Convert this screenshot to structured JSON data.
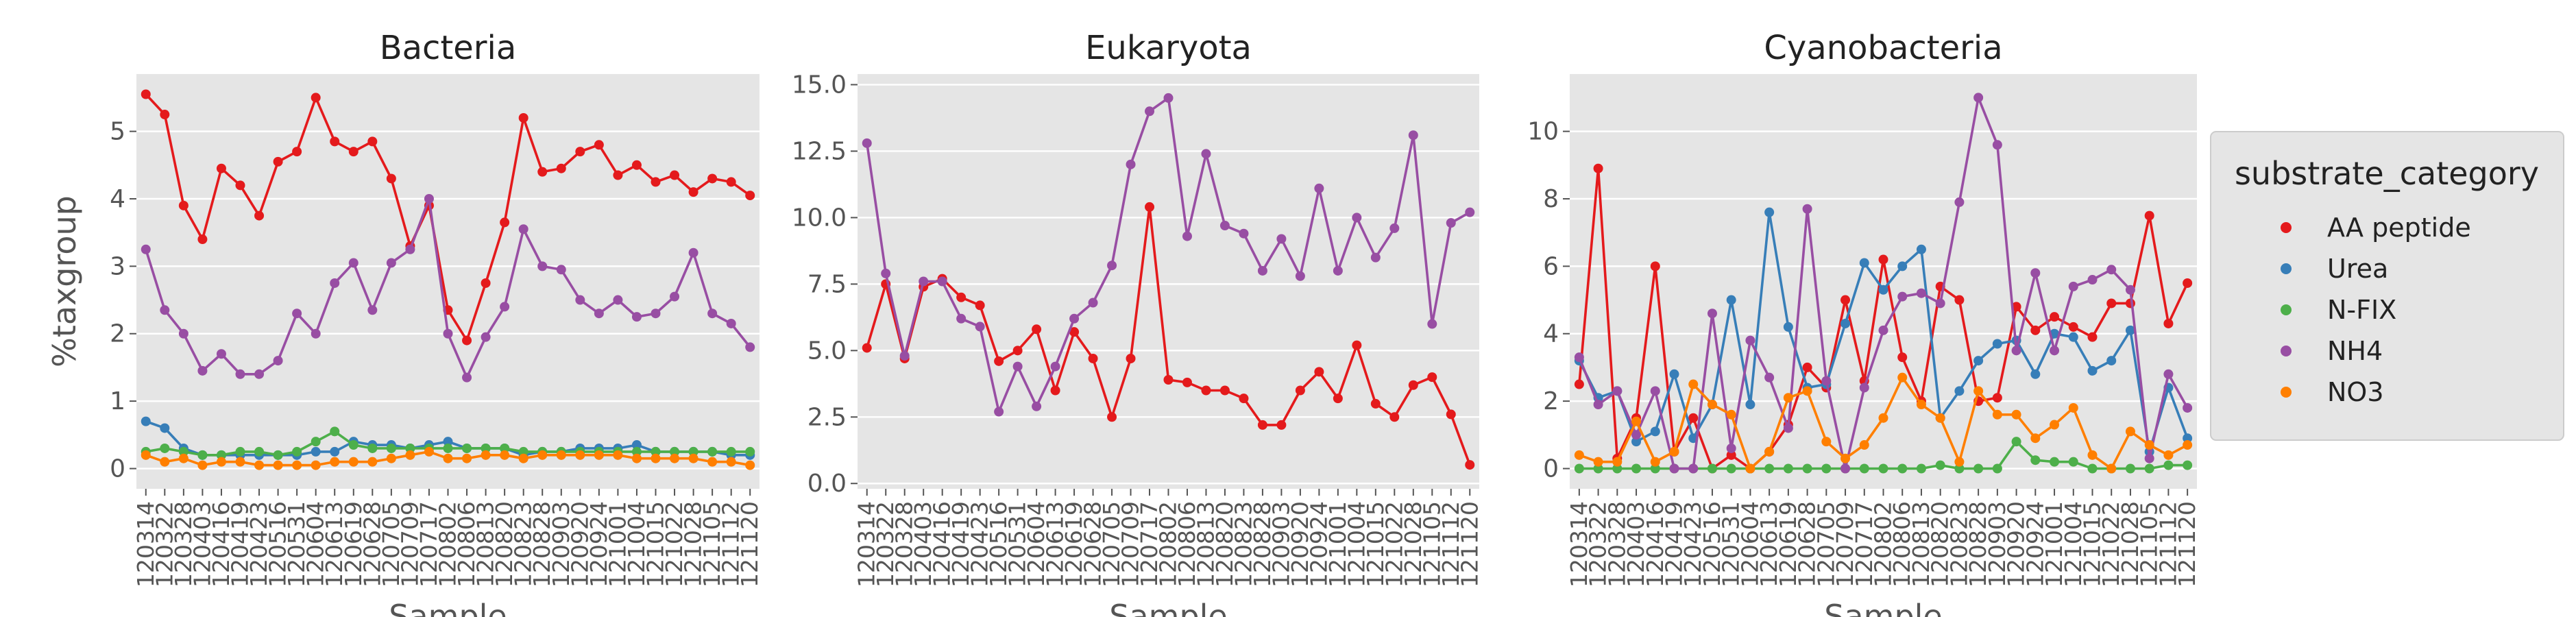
{
  "legend_title": "substrate_category",
  "legend_position": "right",
  "chart_data": [
    {
      "type": "line",
      "title": "Bacteria",
      "ylabel": "%taxgroup",
      "xlabel": "Sample",
      "categories": [
        "120314",
        "120322",
        "120328",
        "120403",
        "120416",
        "120419",
        "120423",
        "120516",
        "120531",
        "120604",
        "120613",
        "120619",
        "120628",
        "120705",
        "120709",
        "120717",
        "120802",
        "120806",
        "120813",
        "120820",
        "120823",
        "120828",
        "120903",
        "120920",
        "120924",
        "121001",
        "121004",
        "121015",
        "121022",
        "121028",
        "121105",
        "121112",
        "121120"
      ],
      "series": [
        {
          "name": "AA peptide",
          "color": "#e41a1c",
          "values": [
            5.55,
            5.25,
            3.9,
            3.4,
            4.45,
            4.2,
            3.75,
            4.55,
            4.7,
            5.5,
            4.85,
            4.7,
            4.85,
            4.3,
            3.3,
            3.9,
            2.35,
            1.9,
            2.75,
            3.65,
            5.2,
            4.4,
            4.45,
            4.7,
            4.8,
            4.35,
            4.5,
            4.25,
            4.35,
            4.1,
            4.3,
            4.25,
            4.05
          ]
        },
        {
          "name": "Urea",
          "color": "#377eb8",
          "values": [
            0.7,
            0.6,
            0.3,
            0.2,
            0.2,
            0.2,
            0.2,
            0.2,
            0.2,
            0.25,
            0.25,
            0.4,
            0.35,
            0.35,
            0.3,
            0.35,
            0.4,
            0.3,
            0.3,
            0.3,
            0.2,
            0.25,
            0.25,
            0.3,
            0.3,
            0.3,
            0.35,
            0.25,
            0.25,
            0.25,
            0.25,
            0.2,
            0.2
          ]
        },
        {
          "name": "N-FIX",
          "color": "#4daf4a",
          "values": [
            0.25,
            0.3,
            0.25,
            0.2,
            0.2,
            0.25,
            0.25,
            0.2,
            0.25,
            0.4,
            0.55,
            0.35,
            0.3,
            0.3,
            0.3,
            0.3,
            0.3,
            0.3,
            0.3,
            0.3,
            0.25,
            0.25,
            0.25,
            0.25,
            0.25,
            0.25,
            0.25,
            0.25,
            0.25,
            0.25,
            0.25,
            0.25,
            0.25
          ]
        },
        {
          "name": "NH4",
          "color": "#984ea3",
          "values": [
            3.25,
            2.35,
            2.0,
            1.45,
            1.7,
            1.4,
            1.4,
            1.6,
            2.3,
            2.0,
            2.75,
            3.05,
            2.35,
            3.05,
            3.25,
            4.0,
            2.0,
            1.35,
            1.95,
            2.4,
            3.55,
            3.0,
            2.95,
            2.5,
            2.3,
            2.5,
            2.25,
            2.3,
            2.55,
            3.2,
            2.3,
            2.15,
            1.8
          ]
        },
        {
          "name": "NO3",
          "color": "#ff7f00",
          "values": [
            0.2,
            0.1,
            0.15,
            0.05,
            0.1,
            0.1,
            0.05,
            0.05,
            0.05,
            0.05,
            0.1,
            0.1,
            0.1,
            0.15,
            0.2,
            0.25,
            0.15,
            0.15,
            0.2,
            0.2,
            0.15,
            0.2,
            0.2,
            0.2,
            0.2,
            0.2,
            0.15,
            0.15,
            0.15,
            0.15,
            0.1,
            0.1,
            0.05
          ]
        }
      ],
      "ylim": [
        -0.3,
        5.85
      ],
      "yticks": [
        0,
        1,
        2,
        3,
        4,
        5
      ],
      "grid": true
    },
    {
      "type": "line",
      "title": "Eukaryota",
      "xlabel": "Sample",
      "categories": [
        "120314",
        "120322",
        "120328",
        "120403",
        "120416",
        "120419",
        "120423",
        "120516",
        "120531",
        "120604",
        "120613",
        "120619",
        "120628",
        "120705",
        "120709",
        "120717",
        "120802",
        "120806",
        "120813",
        "120820",
        "120823",
        "120828",
        "120903",
        "120920",
        "120924",
        "121001",
        "121004",
        "121015",
        "121022",
        "121028",
        "121105",
        "121112",
        "121120"
      ],
      "series": [
        {
          "name": "AA peptide",
          "color": "#e41a1c",
          "values": [
            5.1,
            7.5,
            4.7,
            7.4,
            7.7,
            7.0,
            6.7,
            4.6,
            5.0,
            5.8,
            3.5,
            5.7,
            4.7,
            2.5,
            4.7,
            10.4,
            3.9,
            3.8,
            3.5,
            3.5,
            3.2,
            2.2,
            2.2,
            3.5,
            4.2,
            3.2,
            5.2,
            3.0,
            2.5,
            3.7,
            4.0,
            2.6,
            0.7
          ]
        },
        {
          "name": "NH4",
          "color": "#984ea3",
          "values": [
            12.8,
            7.9,
            4.8,
            7.6,
            7.6,
            6.2,
            5.9,
            2.7,
            4.4,
            2.9,
            4.4,
            6.2,
            6.8,
            8.2,
            12.0,
            14.0,
            14.5,
            9.3,
            12.4,
            9.7,
            9.4,
            8.0,
            9.2,
            7.8,
            11.1,
            8.0,
            10.0,
            8.5,
            9.6,
            13.1,
            6.0,
            9.8,
            10.2
          ]
        }
      ],
      "ylim": [
        -0.2,
        15.4
      ],
      "yticks": [
        {
          "value": 0,
          "label": "0.0"
        },
        {
          "value": 2.5,
          "label": "2.5"
        },
        {
          "value": 5,
          "label": "5.0"
        },
        {
          "value": 7.5,
          "label": "7.5"
        },
        {
          "value": 10,
          "label": "10.0"
        },
        {
          "value": 12.5,
          "label": "12.5"
        },
        {
          "value": 15,
          "label": "15.0"
        }
      ],
      "grid": true
    },
    {
      "type": "line",
      "title": "Cyanobacteria",
      "xlabel": "Sample",
      "categories": [
        "120314",
        "120322",
        "120328",
        "120403",
        "120416",
        "120419",
        "120423",
        "120516",
        "120531",
        "120604",
        "120613",
        "120619",
        "120628",
        "120705",
        "120709",
        "120717",
        "120802",
        "120806",
        "120813",
        "120820",
        "120823",
        "120828",
        "120903",
        "120920",
        "120924",
        "121001",
        "121004",
        "121015",
        "121022",
        "121028",
        "121105",
        "121112",
        "121120"
      ],
      "series": [
        {
          "name": "AA peptide",
          "color": "#e41a1c",
          "values": [
            2.5,
            8.9,
            0.3,
            1.5,
            6.0,
            0.5,
            1.5,
            0.0,
            0.4,
            0.0,
            0.5,
            1.3,
            3.0,
            2.4,
            5.0,
            2.6,
            6.2,
            3.3,
            2.0,
            5.4,
            5.0,
            2.0,
            2.1,
            4.8,
            4.1,
            4.5,
            4.2,
            3.9,
            4.9,
            4.9,
            7.5,
            4.3,
            5.5
          ]
        },
        {
          "name": "Urea",
          "color": "#377eb8",
          "values": [
            3.2,
            2.1,
            2.3,
            0.8,
            1.1,
            2.8,
            0.9,
            1.9,
            5.0,
            1.9,
            7.6,
            4.2,
            2.4,
            2.5,
            4.3,
            6.1,
            5.3,
            6.0,
            6.5,
            1.5,
            2.3,
            3.2,
            3.7,
            3.8,
            2.8,
            4.0,
            3.9,
            2.9,
            3.2,
            4.1,
            0.5,
            2.4,
            0.9
          ]
        },
        {
          "name": "N-FIX",
          "color": "#4daf4a",
          "values": [
            0,
            0,
            0,
            0,
            0,
            0,
            0,
            0,
            0,
            0,
            0,
            0,
            0,
            0,
            0,
            0,
            0,
            0,
            0,
            0.1,
            0,
            0,
            0,
            0.8,
            0.25,
            0.2,
            0.2,
            0,
            0,
            0,
            0,
            0.1,
            0.1
          ]
        },
        {
          "name": "NH4",
          "color": "#984ea3",
          "values": [
            3.3,
            1.9,
            2.3,
            1.0,
            2.3,
            0,
            0,
            4.6,
            0.6,
            3.8,
            2.7,
            1.2,
            7.7,
            2.6,
            0,
            2.4,
            4.1,
            5.1,
            5.2,
            4.9,
            7.9,
            11.0,
            9.6,
            3.5,
            5.8,
            3.5,
            5.4,
            5.6,
            5.9,
            5.3,
            0.3,
            2.8,
            1.8
          ]
        },
        {
          "name": "NO3",
          "color": "#ff7f00",
          "values": [
            0.4,
            0.2,
            0.2,
            1.4,
            0.2,
            0.5,
            2.5,
            1.9,
            1.6,
            0,
            0.5,
            2.1,
            2.3,
            0.8,
            0.3,
            0.7,
            1.5,
            2.7,
            1.9,
            1.5,
            0.2,
            2.3,
            1.6,
            1.6,
            0.9,
            1.3,
            1.8,
            0.4,
            0,
            1.1,
            0.7,
            0.4,
            0.7
          ]
        }
      ],
      "ylim": [
        -0.6,
        11.7
      ],
      "yticks": [
        0,
        2,
        4,
        6,
        8,
        10
      ],
      "grid": true
    }
  ]
}
